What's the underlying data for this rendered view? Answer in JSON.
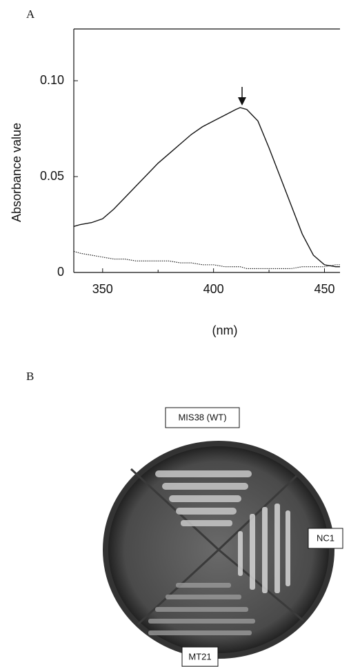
{
  "chart_data": {
    "type": "line",
    "panel_label": "A",
    "x_label": "(nm)",
    "y_label": "Absorbance value",
    "x": [
      337,
      340,
      345,
      350,
      355,
      360,
      365,
      370,
      375,
      380,
      385,
      390,
      395,
      400,
      405,
      410,
      412,
      415,
      420,
      425,
      430,
      435,
      440,
      445,
      450,
      455,
      457
    ],
    "series": [
      {
        "color": "#111111",
        "dash": "solid",
        "values": [
          0.024,
          0.025,
          0.026,
          0.028,
          0.033,
          0.039,
          0.045,
          0.051,
          0.057,
          0.062,
          0.067,
          0.072,
          0.076,
          0.079,
          0.082,
          0.085,
          0.086,
          0.085,
          0.079,
          0.065,
          0.05,
          0.035,
          0.02,
          0.009,
          0.004,
          0.003,
          0.003
        ]
      },
      {
        "color": "#111111",
        "dash": "dotted",
        "values": [
          0.011,
          0.01,
          0.009,
          0.008,
          0.007,
          0.007,
          0.006,
          0.006,
          0.006,
          0.006,
          0.005,
          0.005,
          0.004,
          0.004,
          0.003,
          0.003,
          0.003,
          0.002,
          0.002,
          0.002,
          0.002,
          0.002,
          0.003,
          0.003,
          0.003,
          0.004,
          0.004
        ]
      }
    ],
    "xlim": [
      337,
      457
    ],
    "xticks": [
      350,
      400,
      450
    ],
    "xminorticks": [
      375,
      425
    ],
    "ylim": [
      0,
      0.127
    ],
    "yticks": [
      0,
      0.05,
      {
        "value": 0.1,
        "label": "0.10"
      }
    ]
  },
  "plate": {
    "panel_label": "B",
    "labels": [
      "MIS38 (WT)",
      "NC1",
      "MT21"
    ]
  }
}
